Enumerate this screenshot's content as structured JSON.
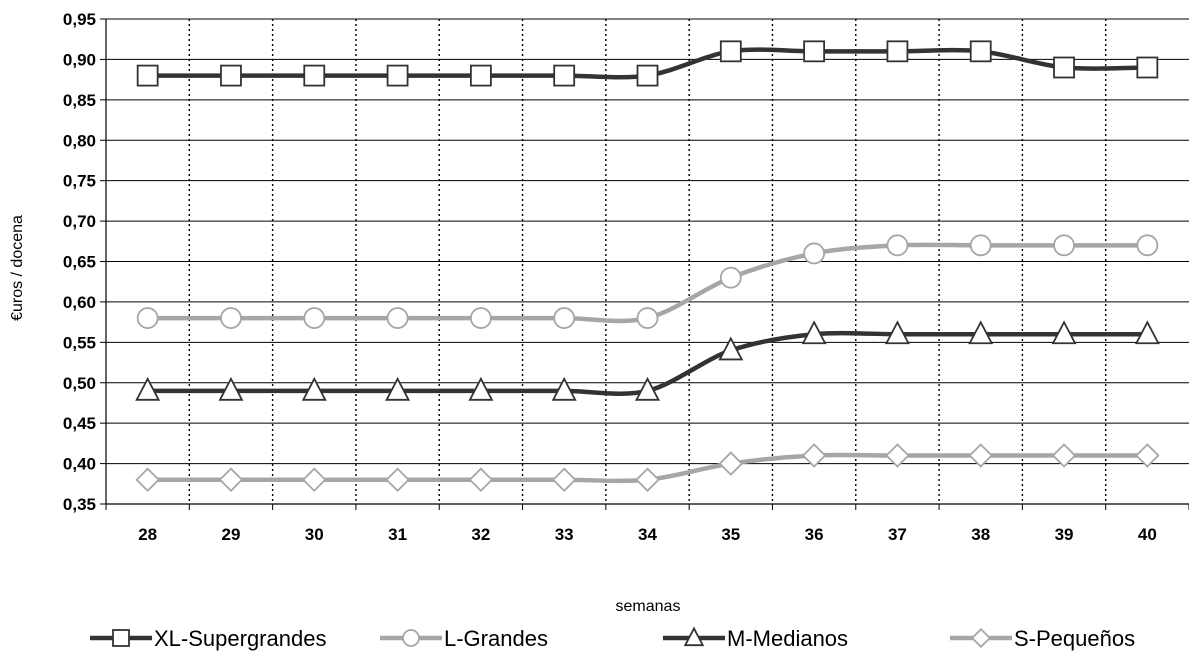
{
  "chart_data": {
    "type": "line",
    "title": "",
    "xlabel": "semanas",
    "ylabel": "€uros / docena",
    "categories": [
      "28",
      "29",
      "30",
      "31",
      "32",
      "33",
      "34",
      "35",
      "36",
      "37",
      "38",
      "39",
      "40"
    ],
    "y_ticks": [
      "0,95",
      "0,90",
      "0,85",
      "0,80",
      "0,75",
      "0,70",
      "0,65",
      "0,60",
      "0,55",
      "0,50",
      "0,45",
      "0,40",
      "0,35"
    ],
    "ylim": [
      0.35,
      0.95
    ],
    "grid": {
      "horizontal": "solid",
      "vertical": "dotted"
    },
    "legend_position": "bottom",
    "series": [
      {
        "name": "XL-Supergrandes",
        "marker": "square",
        "color": "#333333",
        "values": [
          0.88,
          0.88,
          0.88,
          0.88,
          0.88,
          0.88,
          0.88,
          0.91,
          0.91,
          0.91,
          0.91,
          0.89,
          0.89
        ]
      },
      {
        "name": "L-Grandes",
        "marker": "circle",
        "color": "#a6a6a6",
        "values": [
          0.58,
          0.58,
          0.58,
          0.58,
          0.58,
          0.58,
          0.58,
          0.63,
          0.66,
          0.67,
          0.67,
          0.67,
          0.67
        ]
      },
      {
        "name": "M-Medianos",
        "marker": "triangle",
        "color": "#333333",
        "values": [
          0.49,
          0.49,
          0.49,
          0.49,
          0.49,
          0.49,
          0.49,
          0.54,
          0.56,
          0.56,
          0.56,
          0.56,
          0.56
        ]
      },
      {
        "name": "S-Pequeños",
        "marker": "diamond",
        "color": "#a6a6a6",
        "values": [
          0.38,
          0.38,
          0.38,
          0.38,
          0.38,
          0.38,
          0.38,
          0.4,
          0.41,
          0.41,
          0.41,
          0.41,
          0.41
        ]
      }
    ]
  }
}
